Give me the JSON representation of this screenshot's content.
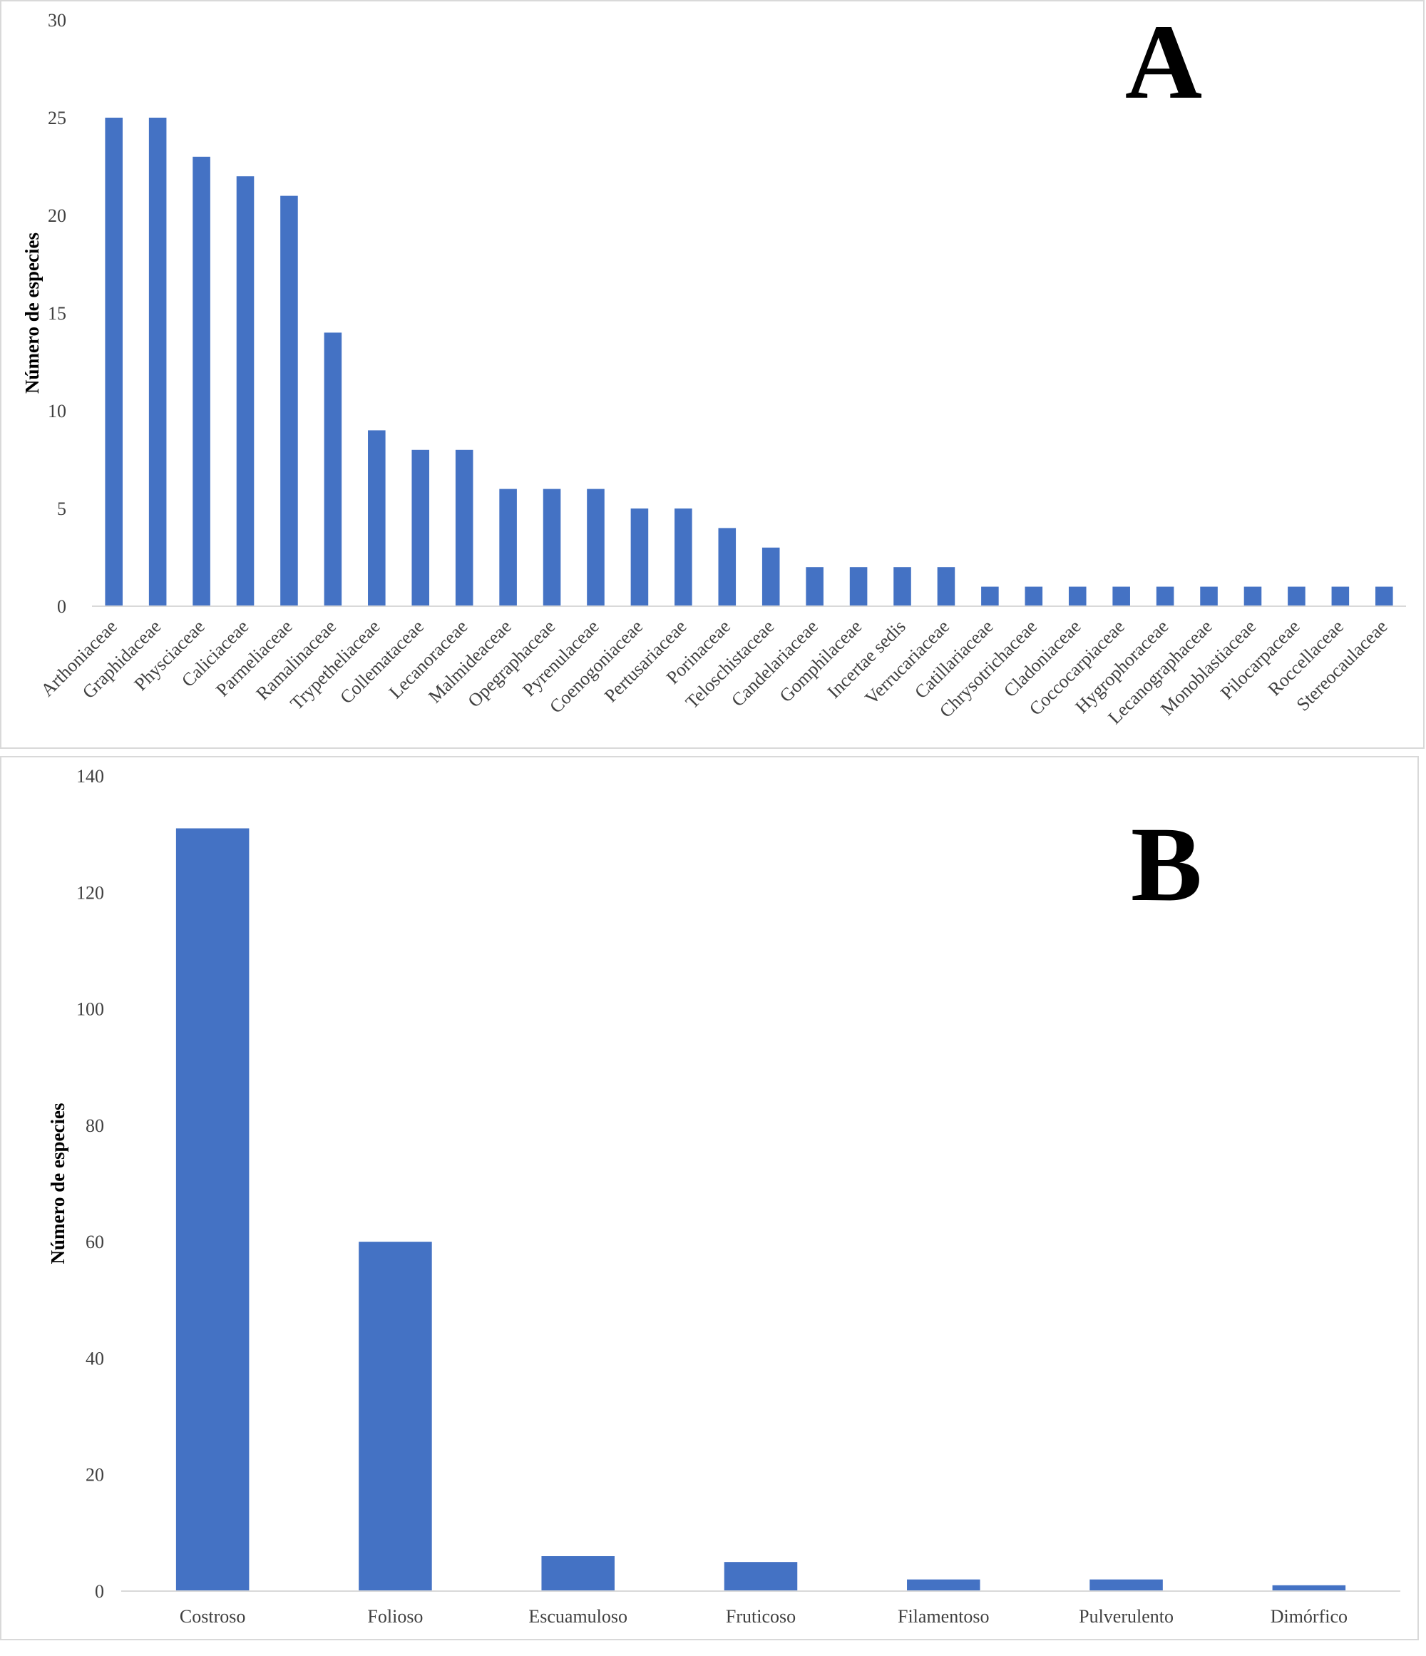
{
  "chart_data": [
    {
      "panel_label": "A",
      "type": "bar",
      "ylabel": "Número de especies",
      "xlabel": "",
      "ylim": [
        0,
        30
      ],
      "yticks": [
        "0",
        "5",
        "10",
        "15",
        "20",
        "25",
        "30"
      ],
      "grid": false,
      "bar_color": "#4472C4",
      "categories": [
        "Arthoniaceae",
        "Graphidaceae",
        "Physciaceae",
        "Caliciaceae",
        "Parmeliaceae",
        "Ramalinaceae",
        "Trypetheliaceae",
        "Collemataceae",
        "Lecanoraceae",
        "Malmideaceae",
        "Opegraphaceae",
        "Pyrenulaceae",
        "Coenogoniaceae",
        "Pertusariaceae",
        "Porinaceae",
        "Teloschistaceae",
        "Candelariaceae",
        "Gomphilaceae",
        "Incertae sedis",
        "Verrucariaceae",
        "Catillariaceae",
        "Chrysotrichaceae",
        "Cladoniaceae",
        "Coccocarpiaceae",
        "Hygrophoraceae",
        "Lecanographaceae",
        "Monoblastiaceae",
        "Pilocarpaceae",
        "Roccellaceae",
        "Stereocaulaceae"
      ],
      "values": [
        25,
        25,
        23,
        22,
        21,
        14,
        9,
        8,
        8,
        6,
        6,
        6,
        5,
        5,
        4,
        3,
        2,
        2,
        2,
        2,
        1,
        1,
        1,
        1,
        1,
        1,
        1,
        1,
        1,
        1
      ]
    },
    {
      "panel_label": "B",
      "type": "bar",
      "ylabel": "Número de especies",
      "xlabel": "",
      "ylim": [
        0,
        140
      ],
      "yticks": [
        "0",
        "20",
        "40",
        "60",
        "80",
        "100",
        "120",
        "140"
      ],
      "grid": false,
      "bar_color": "#4472C4",
      "categories": [
        "Costroso",
        "Folioso",
        "Escuamuloso",
        "Fruticoso",
        "Filamentoso",
        "Pulverulento",
        "Dimórfico"
      ],
      "values": [
        131,
        60,
        6,
        5,
        2,
        2,
        1
      ]
    }
  ]
}
